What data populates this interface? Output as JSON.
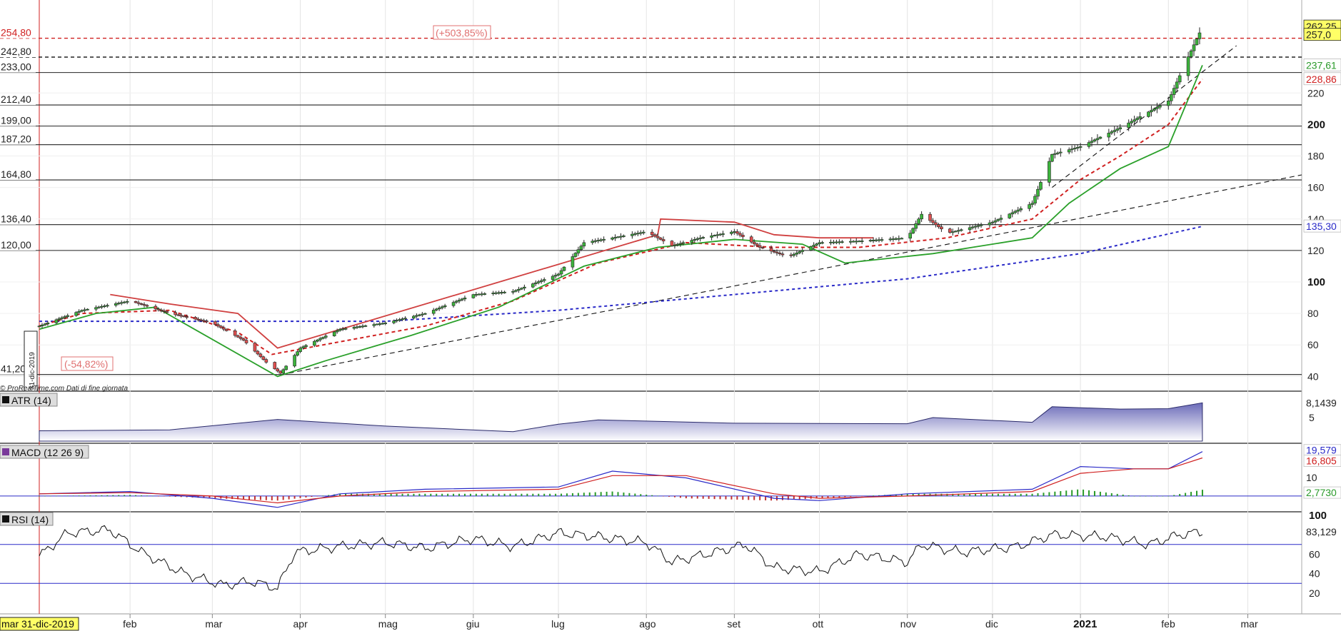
{
  "chart_data": [
    {
      "type": "candlestick",
      "panel": "price",
      "x_range": [
        "2019-12-31",
        "2021-03-20"
      ],
      "ylim": [
        32,
        270
      ],
      "price_labels": [
        {
          "value": 254.8,
          "text": "254,80",
          "color": "#d02020",
          "style": "dashed-red"
        },
        {
          "value": 242.8,
          "text": "242,80",
          "color": "#222222",
          "style": "dashed-black"
        },
        {
          "value": 233.0,
          "text": "233,00",
          "color": "#222222",
          "style": "solid"
        },
        {
          "value": 212.4,
          "text": "212,40",
          "color": "#222222",
          "style": "solid"
        },
        {
          "value": 199.0,
          "text": "199,00",
          "color": "#222222",
          "style": "solid"
        },
        {
          "value": 187.2,
          "text": "187,20",
          "color": "#222222",
          "style": "solid"
        },
        {
          "value": 164.8,
          "text": "164,80",
          "color": "#222222",
          "style": "solid"
        },
        {
          "value": 136.4,
          "text": "136,40",
          "color": "#222222",
          "style": "solid"
        },
        {
          "value": 120.0,
          "text": "120,00",
          "color": "#222222",
          "style": "solid"
        },
        {
          "value": 41.2,
          "text": "41,20",
          "color": "#222222",
          "style": "solid"
        }
      ],
      "right_axis_ticks": [
        40,
        60,
        80,
        100,
        120,
        140,
        160,
        180,
        200,
        220
      ],
      "bold_ticks": [
        100,
        200
      ],
      "right_badges": [
        {
          "value": 262.25,
          "text": "262,25",
          "bg": "#ffff66",
          "color": "#222222"
        },
        {
          "value": 257.0,
          "text": "257,0",
          "bg": "#ffff66",
          "color": "#222222"
        },
        {
          "value": 237.61,
          "text": "237,61",
          "bg": "#ffffff",
          "color": "#2a9a2a"
        },
        {
          "value": 228.86,
          "text": "228,86",
          "bg": "#ffffff",
          "color": "#d02020"
        },
        {
          "value": 135.3,
          "text": "135,30",
          "bg": "#ffffff",
          "color": "#2a2ac8"
        }
      ],
      "annotations": [
        {
          "text": "(+503,85%)",
          "color": "#e07070"
        },
        {
          "text": "(-54,82%)",
          "color": "#e07070"
        },
        {
          "text": "31-dic-2019",
          "color": "#222222"
        }
      ],
      "vertical_marker_date": "2019-12-31",
      "series": [
        {
          "name": "",
          "kind": "close",
          "color": "#111111",
          "x": [
            "2019-12-31",
            "2020-01-15",
            "2020-02-01",
            "2020-02-15",
            "2020-03-01",
            "2020-03-12",
            "2020-03-20",
            "2020-03-25",
            "2020-04-01",
            "2020-04-15",
            "2020-05-01",
            "2020-05-15",
            "2020-06-01",
            "2020-06-15",
            "2020-07-01",
            "2020-07-10",
            "2020-07-20",
            "2020-08-01",
            "2020-08-10",
            "2020-08-20",
            "2020-09-01",
            "2020-09-10",
            "2020-09-20",
            "2020-10-01",
            "2020-10-15",
            "2020-11-01",
            "2020-11-06",
            "2020-11-15",
            "2020-12-01",
            "2020-12-15",
            "2020-12-22",
            "2021-01-01",
            "2021-01-15",
            "2021-02-01",
            "2021-02-08",
            "2021-02-13"
          ],
          "y": [
            72,
            82,
            88,
            80,
            74,
            63,
            49,
            42,
            58,
            70,
            74,
            80,
            92,
            94,
            105,
            125,
            128,
            132,
            123,
            128,
            132,
            122,
            116,
            125,
            126,
            128,
            143,
            131,
            138,
            150,
            181,
            186,
            198,
            215,
            243,
            262
          ]
        },
        {
          "name": "",
          "kind": "moving-average",
          "color": "#2a2ac8",
          "dash": "4,4",
          "x": [
            "2019-12-31",
            "2020-03-01",
            "2020-05-01",
            "2020-07-01",
            "2020-09-01",
            "2020-11-01",
            "2021-01-01",
            "2021-02-13"
          ],
          "y": [
            75,
            75,
            75,
            82,
            92,
            102,
            118,
            135.3
          ]
        },
        {
          "name": "",
          "kind": "moving-average",
          "color": "#d02020",
          "dash": "5,4",
          "x": [
            "2019-12-31",
            "2020-01-15",
            "2020-02-15",
            "2020-03-10",
            "2020-03-22",
            "2020-04-15",
            "2020-05-15",
            "2020-06-15",
            "2020-07-15",
            "2020-08-15",
            "2020-09-15",
            "2020-10-15",
            "2020-11-15",
            "2020-12-15",
            "2021-01-01",
            "2021-01-15",
            "2021-02-01",
            "2021-02-13"
          ],
          "y": [
            72,
            80,
            82,
            68,
            54,
            62,
            72,
            88,
            112,
            125,
            122,
            122,
            128,
            140,
            165,
            180,
            200,
            228.86
          ]
        },
        {
          "name": "",
          "kind": "trailing-stop-low",
          "color": "#2aa02a",
          "x": [
            "2019-12-31",
            "2020-01-20",
            "2020-02-10",
            "2020-03-24",
            "2020-04-10",
            "2020-05-10",
            "2020-06-10",
            "2020-07-10",
            "2020-08-05",
            "2020-09-01",
            "2020-09-25",
            "2020-10-10",
            "2020-11-10",
            "2020-12-15",
            "2020-12-28",
            "2021-01-15",
            "2021-02-01",
            "2021-02-13"
          ],
          "y": [
            70,
            80,
            84,
            40,
            50,
            66,
            84,
            110,
            122,
            127,
            124,
            112,
            118,
            128,
            150,
            172,
            186,
            237.61
          ]
        },
        {
          "name": "",
          "kind": "trailing-stop-high",
          "color": "#d04040",
          "x": [
            "2020-01-25",
            "2020-02-15",
            "2020-03-10",
            "2020-03-24",
            "2020-08-05",
            "2020-08-06",
            "2020-09-01",
            "2020-09-15",
            "2020-10-01",
            "2020-10-20"
          ],
          "y": [
            92,
            86,
            80,
            58,
            130,
            140,
            138,
            130,
            128,
            128
          ]
        }
      ],
      "trendlines": [
        {
          "x": [
            "2020-03-25",
            "2021-03-20"
          ],
          "y": [
            41,
            168
          ],
          "color": "#111111",
          "dash": "7,5"
        },
        {
          "x": [
            "2020-12-22",
            "2021-02-25"
          ],
          "y": [
            160,
            250
          ],
          "color": "#111111",
          "dash": "7,5"
        }
      ],
      "footer": "© ProRealTime.com  Dati di fine giornata"
    },
    {
      "type": "area",
      "panel": "atr",
      "title": "ATR (14)",
      "last_value_label": "8,1439",
      "right_axis_ticks": [
        5
      ],
      "ylim": [
        0,
        10
      ],
      "x": [
        "2019-12-31",
        "2020-02-15",
        "2020-03-24",
        "2020-05-01",
        "2020-06-15",
        "2020-07-01",
        "2020-07-15",
        "2020-09-01",
        "2020-11-01",
        "2020-11-10",
        "2020-12-15",
        "2020-12-22",
        "2021-01-15",
        "2021-02-01",
        "2021-02-13"
      ],
      "values": [
        2.2,
        2.4,
        4.6,
        3.2,
        2.0,
        3.6,
        4.5,
        3.8,
        3.7,
        5.0,
        4.0,
        7.3,
        6.8,
        6.9,
        8.14
      ]
    },
    {
      "type": "line",
      "panel": "macd",
      "title": "MACD (12 26 9)",
      "right_labels": [
        {
          "text": "19,579",
          "color": "#2a2ac8"
        },
        {
          "text": "16,805",
          "color": "#d02020"
        },
        {
          "text": "10",
          "color": "#222222"
        },
        {
          "text": "2,7730",
          "color": "#2a9a2a"
        }
      ],
      "ylim": [
        -6,
        22
      ],
      "x": [
        "2019-12-31",
        "2020-02-01",
        "2020-03-01",
        "2020-03-24",
        "2020-04-15",
        "2020-05-15",
        "2020-07-01",
        "2020-07-20",
        "2020-08-15",
        "2020-09-15",
        "2020-10-01",
        "2020-11-01",
        "2020-12-15",
        "2021-01-01",
        "2021-01-20",
        "2021-02-01",
        "2021-02-13"
      ],
      "series": [
        {
          "name": "",
          "color": "#2a2ac8",
          "values": [
            1,
            2,
            -1,
            -5,
            1,
            3,
            4,
            11,
            8,
            -1,
            -2,
            1,
            3,
            13,
            12,
            12,
            19.58
          ]
        },
        {
          "name": "",
          "color": "#d02020",
          "values": [
            1,
            1.5,
            0,
            -3,
            0,
            2,
            3,
            9,
            9,
            1,
            -1,
            0,
            2,
            10,
            12,
            12,
            16.8
          ]
        },
        {
          "name": "",
          "kind": "histogram",
          "color": "#2a9a2a",
          "values": [
            0,
            0.5,
            -1,
            -2,
            1,
            1,
            1,
            2,
            -1,
            -2,
            -1,
            1,
            1,
            3,
            0,
            0,
            2.77
          ]
        }
      ]
    },
    {
      "type": "line",
      "panel": "rsi",
      "title": "RSI (14)",
      "right_axis_ticks": [
        20,
        40,
        60,
        100
      ],
      "last_value_label": "83,129",
      "levels": [
        70,
        30
      ],
      "ylim": [
        0,
        100
      ],
      "x": [
        "2019-12-31",
        "2020-01-10",
        "2020-01-25",
        "2020-02-05",
        "2020-02-20",
        "2020-03-05",
        "2020-03-15",
        "2020-03-24",
        "2020-03-30",
        "2020-04-15",
        "2020-05-01",
        "2020-05-15",
        "2020-06-01",
        "2020-06-15",
        "2020-07-01",
        "2020-07-15",
        "2020-08-01",
        "2020-08-10",
        "2020-08-25",
        "2020-09-05",
        "2020-09-15",
        "2020-10-01",
        "2020-10-15",
        "2020-11-01",
        "2020-11-06",
        "2020-11-20",
        "2020-12-10",
        "2020-12-22",
        "2021-01-10",
        "2021-01-25",
        "2021-02-05",
        "2021-02-13"
      ],
      "values": [
        58,
        82,
        85,
        62,
        40,
        28,
        32,
        25,
        62,
        68,
        72,
        66,
        76,
        68,
        82,
        78,
        72,
        52,
        62,
        70,
        46,
        42,
        60,
        52,
        70,
        62,
        68,
        80,
        78,
        70,
        80,
        83.13
      ]
    }
  ],
  "time_axis": {
    "labels": [
      {
        "date": "2020-01-01",
        "text": "mar 31-dic-2019",
        "highlight": true
      },
      {
        "date": "2020-02-01",
        "text": "feb"
      },
      {
        "date": "2020-03-01",
        "text": "mar"
      },
      {
        "date": "2020-04-01",
        "text": "apr"
      },
      {
        "date": "2020-05-01",
        "text": "mag"
      },
      {
        "date": "2020-06-01",
        "text": "giu"
      },
      {
        "date": "2020-07-01",
        "text": "lug"
      },
      {
        "date": "2020-08-01",
        "text": "ago"
      },
      {
        "date": "2020-09-01",
        "text": "set"
      },
      {
        "date": "2020-10-01",
        "text": "ott"
      },
      {
        "date": "2020-11-01",
        "text": "nov"
      },
      {
        "date": "2020-12-01",
        "text": "dic"
      },
      {
        "date": "2021-01-01",
        "text": "2021",
        "bold": true
      },
      {
        "date": "2021-02-01",
        "text": "feb"
      },
      {
        "date": "2021-03-01",
        "text": "mar"
      }
    ]
  }
}
